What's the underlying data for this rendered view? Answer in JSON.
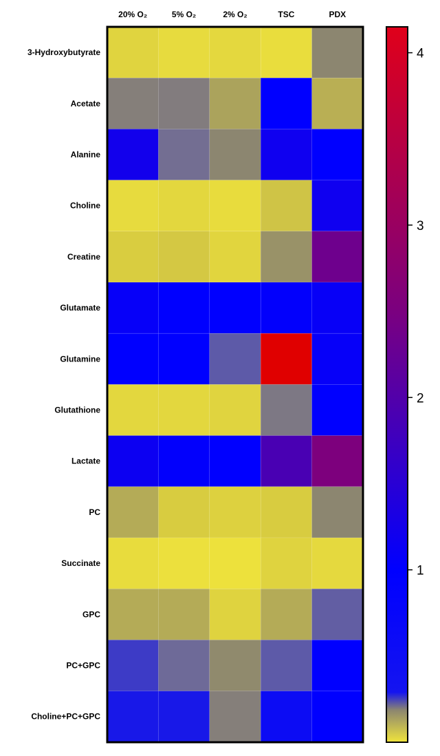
{
  "chart_data": {
    "type": "heatmap",
    "columns": [
      "20% O₂",
      "5% O₂",
      "2% O₂",
      "TSC",
      "PDX"
    ],
    "rows": [
      "3-Hydroxybutyrate",
      "Acetate",
      "Alanine",
      "Choline",
      "Creatine",
      "Glutamate",
      "Glutamine",
      "Glutathione",
      "Lactate",
      "PC",
      "Succinate",
      "GPC",
      "PC+GPC",
      "Choline+PC+GPC"
    ],
    "values": [
      [
        0.12,
        0.07,
        0.09,
        0.05,
        0.35
      ],
      [
        0.4,
        0.42,
        0.28,
        1.0,
        0.25
      ],
      [
        1.15,
        0.52,
        0.35,
        1.12,
        1.0
      ],
      [
        0.07,
        0.1,
        0.06,
        0.2,
        1.12
      ],
      [
        0.17,
        0.19,
        0.11,
        0.32,
        1.9
      ],
      [
        1.05,
        1.0,
        1.0,
        1.02,
        1.06
      ],
      [
        1.0,
        1.0,
        0.62,
        4.0,
        1.05
      ],
      [
        0.1,
        0.1,
        0.12,
        0.45,
        1.0
      ],
      [
        1.1,
        1.02,
        1.0,
        1.6,
        2.05
      ],
      [
        0.26,
        0.18,
        0.14,
        0.18,
        0.35
      ],
      [
        0.06,
        0.03,
        0.02,
        0.13,
        0.08
      ],
      [
        0.26,
        0.26,
        0.13,
        0.26,
        0.6
      ],
      [
        0.75,
        0.55,
        0.34,
        0.62,
        1.0
      ],
      [
        0.9,
        0.9,
        0.4,
        0.95,
        1.0
      ]
    ],
    "colorbar": {
      "min": 0,
      "max": 4.15,
      "ticks": [
        1,
        2,
        3,
        4
      ]
    },
    "colors": {
      "low": "#f0e43c",
      "mid_low": "#8c8670",
      "mid": "#0000ff",
      "high": "#e00000"
    }
  }
}
